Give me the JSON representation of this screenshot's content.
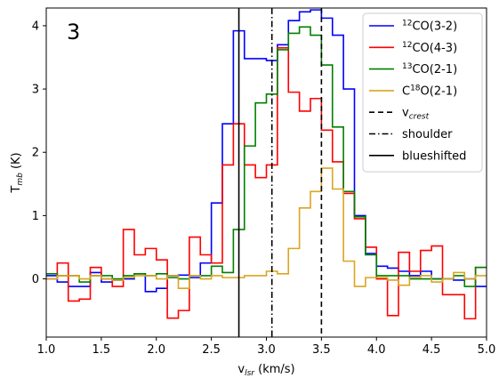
{
  "chart_data": {
    "type": "line",
    "step": true,
    "panel_label": "3",
    "xlabel": "v",
    "xlabel_sub": "lsr",
    "xlabel_unit": " (km/s)",
    "ylabel": "T",
    "ylabel_sub": "mb",
    "ylabel_unit": " (K)",
    "xlim": [
      1.0,
      5.0
    ],
    "ylim": [
      -0.92,
      4.28
    ],
    "xticks": [
      1.0,
      1.5,
      2.0,
      2.5,
      3.0,
      3.5,
      4.0,
      4.5,
      5.0
    ],
    "xtick_labels": [
      "1.0",
      "1.5",
      "2.0",
      "2.5",
      "3.0",
      "3.5",
      "4.0",
      "4.5",
      "5.0"
    ],
    "yticks": [
      0,
      1,
      2,
      3,
      4
    ],
    "ytick_labels": [
      "0",
      "1",
      "2",
      "3",
      "4"
    ],
    "grid": false,
    "legend_position": "top-right",
    "bin_edges": [
      1.0,
      1.1,
      1.2,
      1.3,
      1.4,
      1.5,
      1.6,
      1.7,
      1.8,
      1.9,
      2.0,
      2.1,
      2.2,
      2.3,
      2.4,
      2.5,
      2.6,
      2.7,
      2.8,
      2.9,
      3.0,
      3.1,
      3.2,
      3.3,
      3.4,
      3.5,
      3.6,
      3.7,
      3.8,
      3.9,
      4.0,
      4.1,
      4.2,
      4.3,
      4.4,
      4.5,
      4.6,
      4.7,
      4.8,
      4.9,
      5.0
    ],
    "series": [
      {
        "name_pre": "12",
        "name_main": "CO(3-2)",
        "color": "#0000ff",
        "values": [
          0.05,
          -0.05,
          -0.12,
          -0.12,
          0.1,
          -0.05,
          -0.02,
          0.0,
          0.08,
          -0.2,
          -0.15,
          0.05,
          0.06,
          0.02,
          0.25,
          1.2,
          2.45,
          3.92,
          3.48,
          3.48,
          3.45,
          3.7,
          4.08,
          4.22,
          4.25,
          4.12,
          3.85,
          3.0,
          1.0,
          0.4,
          0.2,
          0.17,
          0.12,
          0.05,
          0.12,
          0.0,
          0.0,
          -0.02,
          0.0,
          -0.12
        ]
      },
      {
        "name_pre": "12",
        "name_main": "CO(4-3)",
        "color": "#ff0000",
        "values": [
          0.0,
          0.25,
          -0.35,
          -0.32,
          0.18,
          0.0,
          -0.12,
          0.78,
          0.38,
          0.48,
          0.3,
          -0.62,
          -0.5,
          0.66,
          0.38,
          0.25,
          1.8,
          2.45,
          1.8,
          1.6,
          1.8,
          3.65,
          2.95,
          2.65,
          2.85,
          2.35,
          1.85,
          1.35,
          0.95,
          0.5,
          0.0,
          -0.58,
          0.42,
          0.12,
          0.45,
          0.52,
          -0.25,
          -0.25,
          -0.63,
          0.18
        ]
      },
      {
        "name_pre": "13",
        "name_main": "CO(2-1)",
        "color": "#008000",
        "values": [
          0.08,
          0.05,
          0.05,
          -0.05,
          0.05,
          0.05,
          0.0,
          0.05,
          0.08,
          0.05,
          0.08,
          0.02,
          0.0,
          0.05,
          0.05,
          0.2,
          0.1,
          0.78,
          2.1,
          2.78,
          2.92,
          3.62,
          3.88,
          3.98,
          3.85,
          3.38,
          2.4,
          1.38,
          0.98,
          0.38,
          0.05,
          0.05,
          0.05,
          0.0,
          0.0,
          0.0,
          0.0,
          0.05,
          -0.12,
          0.18
        ]
      },
      {
        "name_pre": "",
        "name_main": "C",
        "name_sup": "18",
        "name_post": "O(2-1)",
        "color": "#daa520",
        "values": [
          0.0,
          0.05,
          0.05,
          0.0,
          0.05,
          0.0,
          -0.02,
          0.02,
          0.05,
          0.05,
          0.0,
          0.05,
          -0.15,
          0.05,
          0.0,
          0.05,
          0.02,
          0.02,
          0.05,
          0.05,
          0.12,
          0.08,
          0.48,
          1.12,
          1.38,
          1.75,
          1.42,
          0.28,
          -0.12,
          0.02,
          0.02,
          -0.02,
          -0.1,
          0.02,
          0.05,
          -0.05,
          0.0,
          0.1,
          0.0,
          0.05
        ]
      }
    ],
    "vlines": [
      {
        "name": "v",
        "name_sub": "crest",
        "x": 3.5,
        "style": "dashed"
      },
      {
        "name": "shoulder",
        "name_sub": "",
        "x": 3.05,
        "style": "dashdot"
      },
      {
        "name": "blueshifted",
        "name_sub": "",
        "x": 2.75,
        "style": "solid"
      }
    ]
  }
}
